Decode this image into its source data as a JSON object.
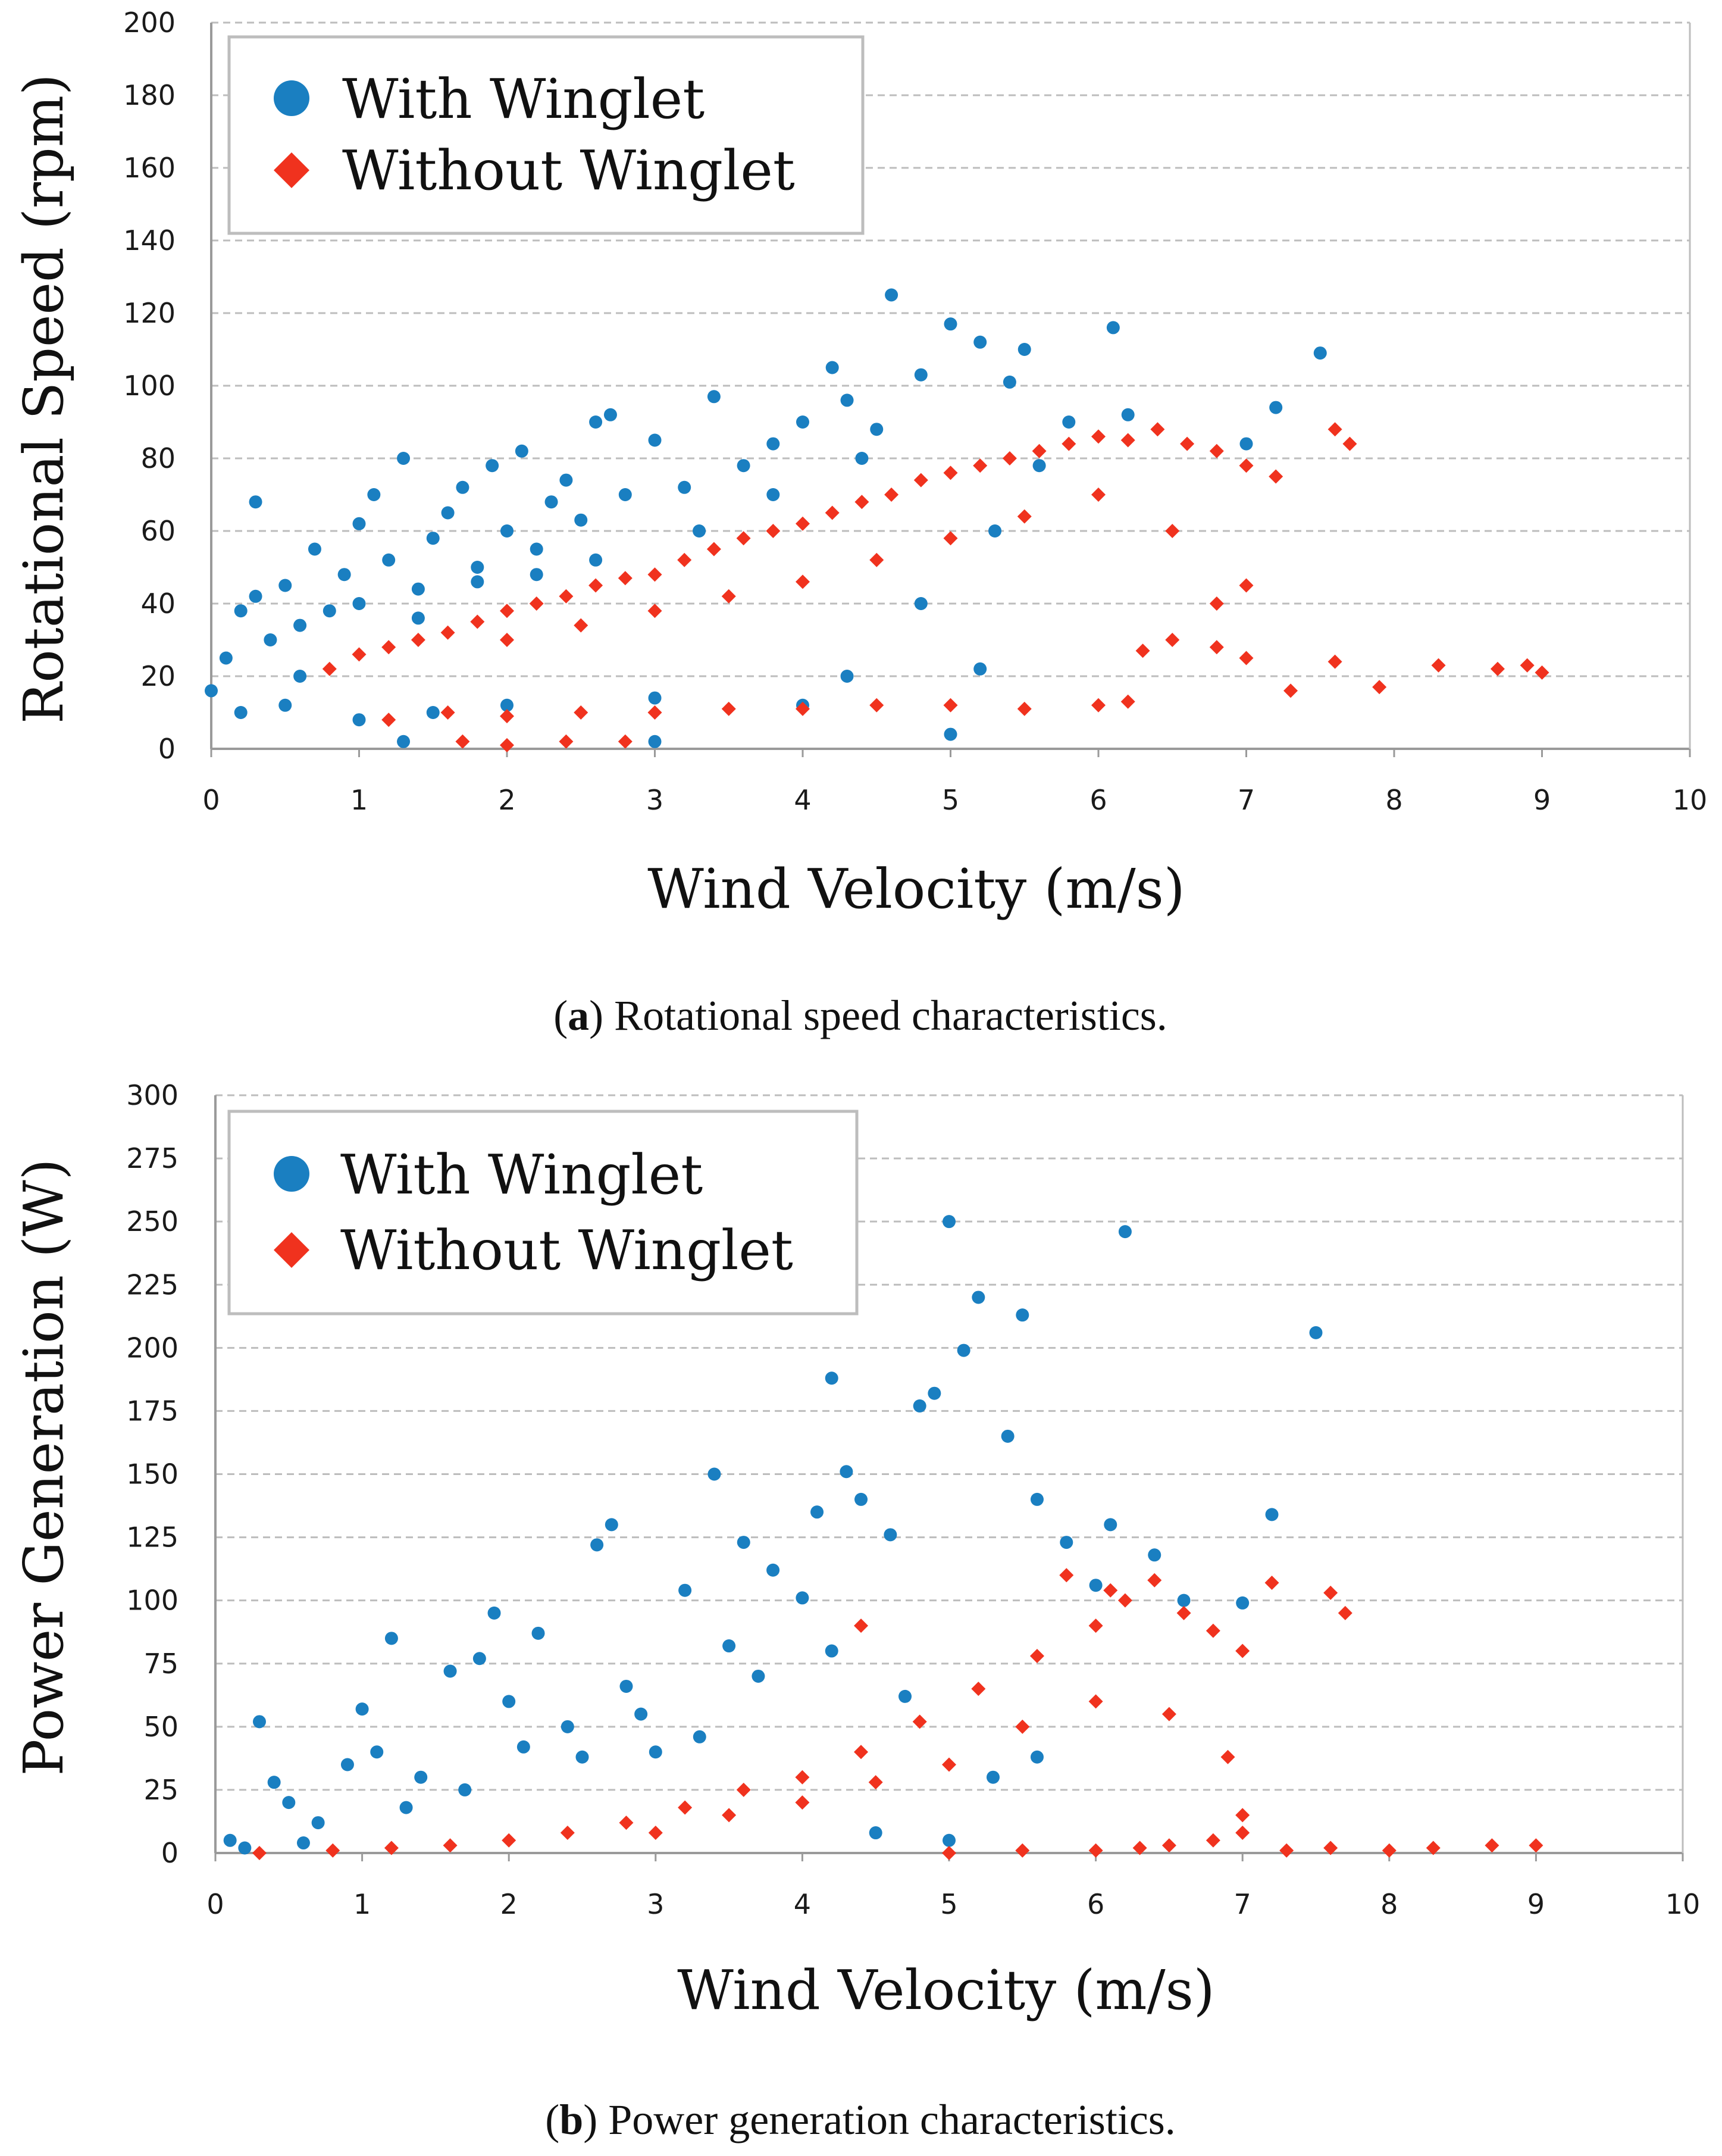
{
  "figure": {
    "colors": {
      "with": "#1a7fc1",
      "without": "#f0321e",
      "grid": "#bdbdbd",
      "axis": "#9a9a9a"
    }
  },
  "chart_data": [
    {
      "id": "a",
      "type": "scatter",
      "caption_letter": "a",
      "caption_open": "(",
      "caption_close": ")",
      "caption_text": " Rotational speed characteristics.",
      "xlabel": "Wind Velocity  (m/s)",
      "ylabel": "Rotational Speed (rpm)",
      "xlim": [
        0,
        10
      ],
      "ylim": [
        0,
        200
      ],
      "xticks": [
        "0",
        "1",
        "2",
        "3",
        "4",
        "5",
        "6",
        "7",
        "8",
        "9",
        "10"
      ],
      "yticks": [
        "0",
        "20",
        "40",
        "60",
        "80",
        "100",
        "120",
        "140",
        "160",
        "180",
        "200"
      ],
      "legend": {
        "position": "top-left",
        "entries": [
          "With Winglet",
          "Without Winglet"
        ]
      },
      "series": [
        {
          "name": "With Winglet",
          "marker": "circle",
          "points": [
            [
              0.1,
              25
            ],
            [
              0.2,
              38
            ],
            [
              0.3,
              68
            ],
            [
              0.4,
              30
            ],
            [
              0.5,
              45
            ],
            [
              0.6,
              20
            ],
            [
              0.7,
              55
            ],
            [
              0.8,
              38
            ],
            [
              0.9,
              48
            ],
            [
              1.0,
              62
            ],
            [
              1.1,
              70
            ],
            [
              1.2,
              52
            ],
            [
              1.3,
              80
            ],
            [
              1.4,
              44
            ],
            [
              1.5,
              58
            ],
            [
              1.6,
              65
            ],
            [
              1.7,
              72
            ],
            [
              1.8,
              50
            ],
            [
              1.9,
              78
            ],
            [
              2.0,
              60
            ],
            [
              2.1,
              82
            ],
            [
              2.2,
              55
            ],
            [
              2.3,
              68
            ],
            [
              2.4,
              74
            ],
            [
              2.5,
              63
            ],
            [
              2.6,
              90
            ],
            [
              2.7,
              92
            ],
            [
              2.8,
              70
            ],
            [
              3.0,
              85
            ],
            [
              3.2,
              72
            ],
            [
              3.4,
              97
            ],
            [
              3.6,
              78
            ],
            [
              3.8,
              84
            ],
            [
              4.0,
              90
            ],
            [
              4.2,
              105
            ],
            [
              4.3,
              96
            ],
            [
              4.5,
              88
            ],
            [
              4.6,
              125
            ],
            [
              4.8,
              103
            ],
            [
              5.0,
              117
            ],
            [
              5.2,
              112
            ],
            [
              5.4,
              101
            ],
            [
              5.5,
              110
            ],
            [
              5.8,
              90
            ],
            [
              6.1,
              116
            ],
            [
              6.2,
              92
            ],
            [
              7.0,
              84
            ],
            [
              7.2,
              94
            ],
            [
              7.5,
              109
            ],
            [
              0.2,
              10
            ],
            [
              0.5,
              12
            ],
            [
              1.0,
              8
            ],
            [
              1.5,
              10
            ],
            [
              2.0,
              12
            ],
            [
              3.0,
              14
            ],
            [
              4.0,
              12
            ],
            [
              5.0,
              4
            ],
            [
              1.3,
              2
            ],
            [
              3.0,
              2
            ],
            [
              0.0,
              16
            ],
            [
              0.3,
              42
            ],
            [
              0.6,
              34
            ],
            [
              1.0,
              40
            ],
            [
              1.4,
              36
            ],
            [
              1.8,
              46
            ],
            [
              2.2,
              48
            ],
            [
              2.6,
              52
            ],
            [
              3.3,
              60
            ],
            [
              3.8,
              70
            ],
            [
              4.4,
              80
            ],
            [
              5.3,
              60
            ],
            [
              5.6,
              78
            ],
            [
              4.8,
              40
            ],
            [
              5.2,
              22
            ],
            [
              4.3,
              20
            ]
          ]
        },
        {
          "name": "Without Winglet",
          "marker": "diamond",
          "points": [
            [
              0.8,
              22
            ],
            [
              1.0,
              26
            ],
            [
              1.2,
              28
            ],
            [
              1.4,
              30
            ],
            [
              1.6,
              32
            ],
            [
              1.8,
              35
            ],
            [
              2.0,
              38
            ],
            [
              2.2,
              40
            ],
            [
              2.4,
              42
            ],
            [
              2.6,
              45
            ],
            [
              2.8,
              47
            ],
            [
              3.0,
              48
            ],
            [
              3.2,
              52
            ],
            [
              3.4,
              55
            ],
            [
              3.6,
              58
            ],
            [
              3.8,
              60
            ],
            [
              4.0,
              62
            ],
            [
              4.2,
              65
            ],
            [
              4.4,
              68
            ],
            [
              4.6,
              70
            ],
            [
              4.8,
              74
            ],
            [
              5.0,
              76
            ],
            [
              5.2,
              78
            ],
            [
              5.4,
              80
            ],
            [
              5.6,
              82
            ],
            [
              5.8,
              84
            ],
            [
              6.0,
              86
            ],
            [
              6.2,
              85
            ],
            [
              6.4,
              88
            ],
            [
              6.6,
              84
            ],
            [
              6.8,
              82
            ],
            [
              7.0,
              78
            ],
            [
              7.2,
              75
            ],
            [
              7.6,
              88
            ],
            [
              7.7,
              84
            ],
            [
              2.0,
              30
            ],
            [
              2.5,
              34
            ],
            [
              3.0,
              38
            ],
            [
              3.5,
              42
            ],
            [
              4.0,
              46
            ],
            [
              4.5,
              52
            ],
            [
              5.0,
              58
            ],
            [
              5.5,
              64
            ],
            [
              6.0,
              70
            ],
            [
              6.5,
              60
            ],
            [
              6.8,
              40
            ],
            [
              7.0,
              45
            ],
            [
              1.2,
              8
            ],
            [
              1.6,
              10
            ],
            [
              2.0,
              9
            ],
            [
              2.5,
              10
            ],
            [
              3.0,
              10
            ],
            [
              3.5,
              11
            ],
            [
              4.0,
              11
            ],
            [
              4.5,
              12
            ],
            [
              5.0,
              12
            ],
            [
              5.5,
              11
            ],
            [
              6.0,
              12
            ],
            [
              6.2,
              13
            ],
            [
              1.7,
              2
            ],
            [
              2.0,
              1
            ],
            [
              2.4,
              2
            ],
            [
              2.8,
              2
            ],
            [
              6.5,
              30
            ],
            [
              7.0,
              25
            ],
            [
              7.6,
              24
            ],
            [
              7.9,
              17
            ],
            [
              8.3,
              23
            ],
            [
              8.7,
              22
            ],
            [
              8.9,
              23
            ],
            [
              9.0,
              21
            ],
            [
              7.3,
              16
            ],
            [
              6.8,
              28
            ],
            [
              6.3,
              27
            ]
          ]
        }
      ]
    },
    {
      "id": "b",
      "type": "scatter",
      "caption_letter": "b",
      "caption_open": "(",
      "caption_close": ")",
      "caption_text": " Power generation characteristics.",
      "xlabel": "Wind Velocity  (m/s)",
      "ylabel": "Power Generation  (W)",
      "xlim": [
        0,
        10
      ],
      "ylim": [
        0,
        300
      ],
      "xticks": [
        "0",
        "1",
        "2",
        "3",
        "4",
        "5",
        "6",
        "7",
        "8",
        "9",
        "10"
      ],
      "yticks": [
        "0",
        "25",
        "50",
        "75",
        "100",
        "125",
        "150",
        "175",
        "200",
        "225",
        "250",
        "275",
        "300"
      ],
      "legend": {
        "position": "top-left",
        "entries": [
          "With Winglet",
          "Without Winglet"
        ]
      },
      "series": [
        {
          "name": "With Winglet",
          "marker": "circle",
          "points": [
            [
              0.1,
              5
            ],
            [
              0.3,
              52
            ],
            [
              0.4,
              28
            ],
            [
              0.5,
              20
            ],
            [
              0.7,
              12
            ],
            [
              0.9,
              35
            ],
            [
              1.0,
              57
            ],
            [
              1.1,
              40
            ],
            [
              1.2,
              85
            ],
            [
              1.4,
              30
            ],
            [
              1.6,
              72
            ],
            [
              1.8,
              77
            ],
            [
              1.9,
              95
            ],
            [
              2.0,
              60
            ],
            [
              2.2,
              87
            ],
            [
              2.4,
              50
            ],
            [
              2.6,
              122
            ],
            [
              2.7,
              130
            ],
            [
              2.8,
              66
            ],
            [
              3.0,
              40
            ],
            [
              3.2,
              104
            ],
            [
              3.4,
              150
            ],
            [
              3.5,
              82
            ],
            [
              3.6,
              123
            ],
            [
              3.8,
              112
            ],
            [
              4.0,
              101
            ],
            [
              4.1,
              135
            ],
            [
              4.2,
              188
            ],
            [
              4.3,
              151
            ],
            [
              4.4,
              140
            ],
            [
              4.6,
              126
            ],
            [
              4.8,
              177
            ],
            [
              4.9,
              182
            ],
            [
              5.0,
              250
            ],
            [
              5.1,
              199
            ],
            [
              5.2,
              220
            ],
            [
              5.4,
              165
            ],
            [
              5.5,
              213
            ],
            [
              5.6,
              140
            ],
            [
              5.8,
              123
            ],
            [
              6.0,
              106
            ],
            [
              6.1,
              130
            ],
            [
              6.2,
              246
            ],
            [
              6.4,
              118
            ],
            [
              6.6,
              100
            ],
            [
              7.0,
              99
            ],
            [
              7.2,
              134
            ],
            [
              7.5,
              206
            ],
            [
              0.2,
              2
            ],
            [
              0.6,
              4
            ],
            [
              1.3,
              18
            ],
            [
              1.7,
              25
            ],
            [
              2.1,
              42
            ],
            [
              2.5,
              38
            ],
            [
              2.9,
              55
            ],
            [
              3.3,
              46
            ],
            [
              3.7,
              70
            ],
            [
              4.2,
              80
            ],
            [
              4.7,
              62
            ],
            [
              5.3,
              30
            ],
            [
              5.6,
              38
            ],
            [
              5.0,
              5
            ],
            [
              4.5,
              8
            ]
          ]
        },
        {
          "name": "Without Winglet",
          "marker": "diamond",
          "points": [
            [
              0.3,
              0
            ],
            [
              0.8,
              1
            ],
            [
              1.2,
              2
            ],
            [
              1.6,
              3
            ],
            [
              2.0,
              5
            ],
            [
              2.4,
              8
            ],
            [
              2.8,
              12
            ],
            [
              3.2,
              18
            ],
            [
              3.6,
              25
            ],
            [
              4.0,
              30
            ],
            [
              4.4,
              40
            ],
            [
              4.8,
              52
            ],
            [
              5.2,
              65
            ],
            [
              5.6,
              78
            ],
            [
              6.0,
              90
            ],
            [
              6.2,
              100
            ],
            [
              6.4,
              108
            ],
            [
              6.6,
              95
            ],
            [
              6.8,
              88
            ],
            [
              7.0,
              80
            ],
            [
              7.2,
              107
            ],
            [
              7.7,
              95
            ],
            [
              7.6,
              103
            ],
            [
              3.0,
              8
            ],
            [
              3.5,
              15
            ],
            [
              4.0,
              20
            ],
            [
              4.5,
              28
            ],
            [
              5.0,
              35
            ],
            [
              5.5,
              50
            ],
            [
              6.0,
              60
            ],
            [
              6.5,
              55
            ],
            [
              6.9,
              38
            ],
            [
              7.0,
              15
            ],
            [
              7.0,
              8
            ],
            [
              5.0,
              0
            ],
            [
              5.5,
              1
            ],
            [
              6.0,
              1
            ],
            [
              6.5,
              3
            ],
            [
              7.3,
              1
            ],
            [
              7.6,
              2
            ],
            [
              8.0,
              1
            ],
            [
              8.3,
              2
            ],
            [
              8.7,
              3
            ],
            [
              9.0,
              3
            ],
            [
              6.3,
              2
            ],
            [
              6.8,
              5
            ],
            [
              5.8,
              110
            ],
            [
              6.1,
              104
            ],
            [
              4.4,
              90
            ]
          ]
        }
      ]
    }
  ]
}
